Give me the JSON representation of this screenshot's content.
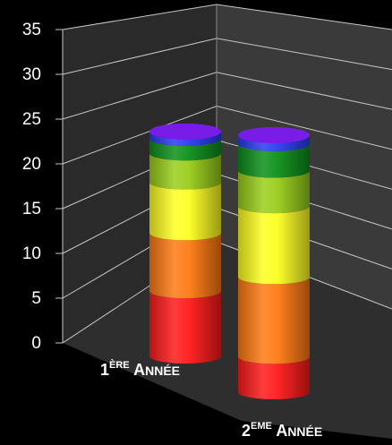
{
  "chart_data": {
    "type": "bar",
    "stacked": true,
    "three_d": true,
    "bar_shape": "cylinder",
    "grid": true,
    "ylim": [
      0,
      35
    ],
    "yticks": [
      "0",
      "5",
      "10",
      "15",
      "20",
      "25",
      "30",
      "35"
    ],
    "categories": [
      "1ÈRE ANNÉE",
      "2EME ANNÉE"
    ],
    "category_labels": [
      {
        "n": "1",
        "sup": "ÈRE",
        "w1": "A",
        "w2": "NNÉE"
      },
      {
        "n": "2",
        "sup": "EME",
        "w1": "A",
        "w2": "NNÉE"
      }
    ],
    "series": [
      {
        "color": "#ff1a1a",
        "values": [
          9,
          4
        ]
      },
      {
        "color": "#ff7a12",
        "values": [
          8,
          9
        ]
      },
      {
        "color": "#ffff22",
        "values": [
          7,
          8
        ]
      },
      {
        "color": "#9acd1a",
        "values": [
          4,
          4
        ]
      },
      {
        "color": "#0d8f1a",
        "values": [
          2,
          3
        ]
      },
      {
        "color": "#2a3cf0",
        "values": [
          1,
          1
        ]
      }
    ],
    "top_cap_color": "#7a1ce8"
  }
}
